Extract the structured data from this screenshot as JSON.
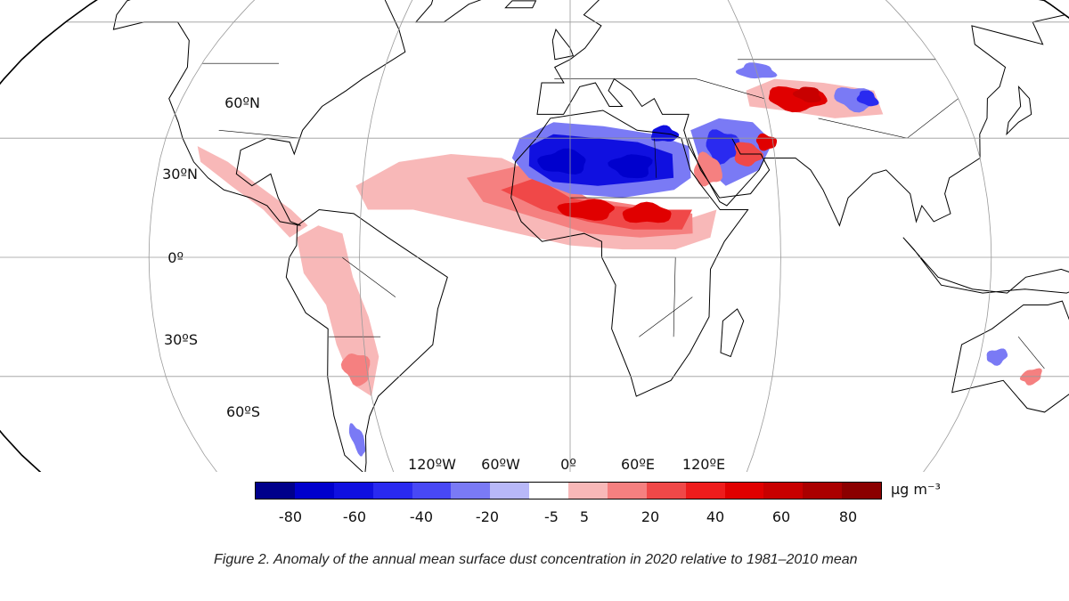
{
  "map": {
    "projection": "robinson",
    "lat_labels": [
      "60ºN",
      "30ºN",
      "0º",
      "30ºS",
      "60ºS"
    ],
    "lon_labels": [
      "120ºW",
      "60ºW",
      "0º",
      "60ºE",
      "120ºE"
    ]
  },
  "colorbar": {
    "units": "μg m⁻³",
    "ticks": [
      "-80",
      "-60",
      "-40",
      "-20",
      "-5",
      "5",
      "20",
      "40",
      "60",
      "80"
    ],
    "colors": [
      "#00008b",
      "#0000cd",
      "#1010e0",
      "#2a2af0",
      "#4848f5",
      "#7a7af5",
      "#b8b8f8",
      "#ffffff",
      "#f8b8b8",
      "#f58080",
      "#f04848",
      "#ee1c1c",
      "#e00000",
      "#c80000",
      "#aa0000",
      "#8b0000"
    ]
  },
  "caption": "Figure 2. Anomaly of the annual mean surface dust concentration in 2020 relative to 1981–2010 mean"
}
